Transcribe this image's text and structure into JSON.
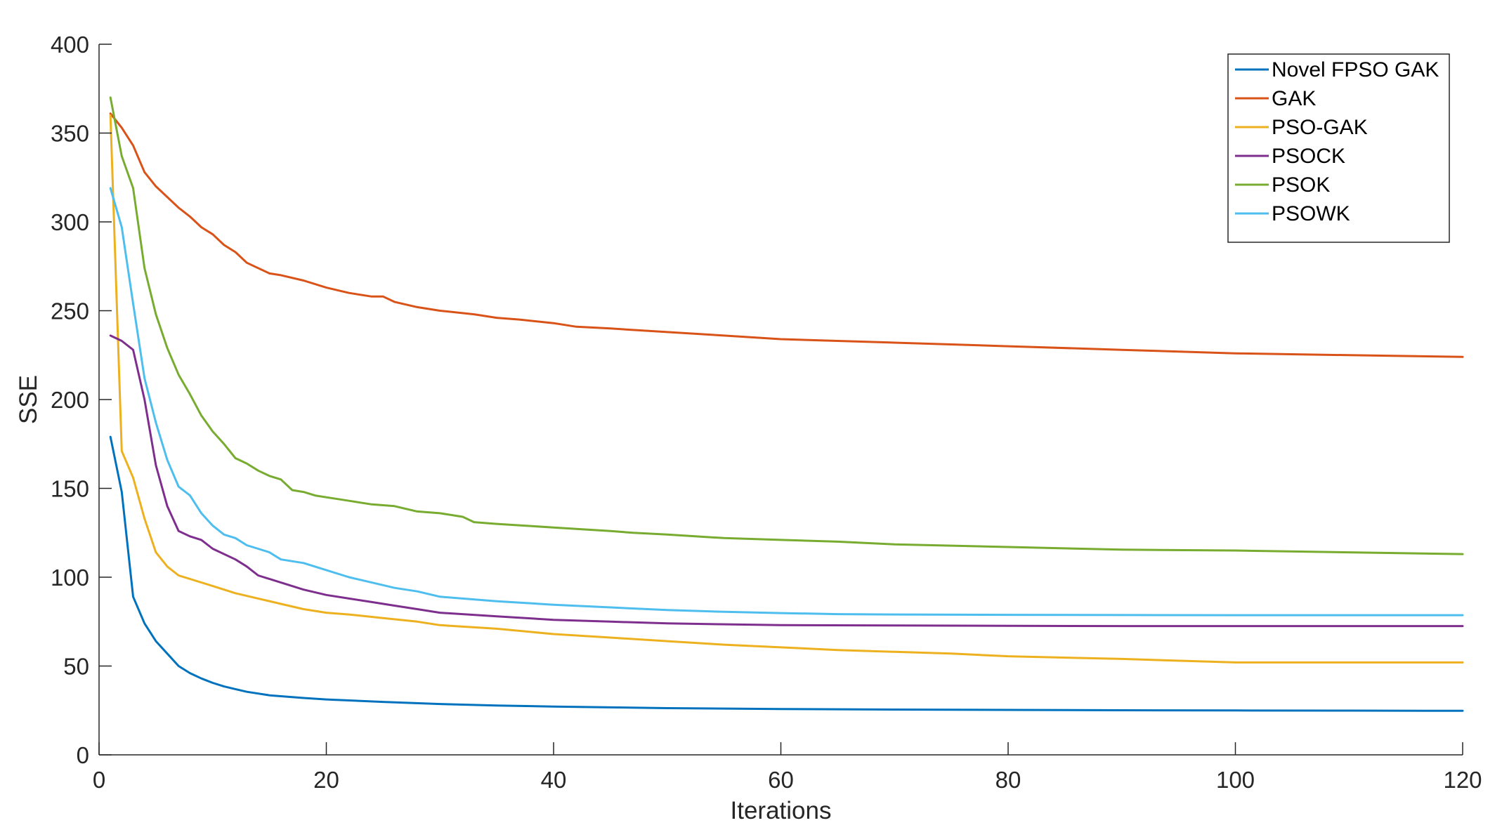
{
  "chart_data": {
    "type": "line",
    "title": "",
    "xlabel": "Iterations",
    "ylabel": "SSE",
    "xlim": [
      0,
      120
    ],
    "ylim": [
      0,
      400
    ],
    "xticks": [
      0,
      20,
      40,
      60,
      80,
      100,
      120
    ],
    "yticks": [
      0,
      50,
      100,
      150,
      200,
      250,
      300,
      350,
      400
    ],
    "grid": false,
    "legend_position": "top-right",
    "series": [
      {
        "name": "Novel FPSO GAK",
        "color": "#0072BD",
        "points": [
          [
            1,
            179
          ],
          [
            2,
            148
          ],
          [
            3,
            89
          ],
          [
            4,
            74
          ],
          [
            5,
            64
          ],
          [
            6,
            57
          ],
          [
            7,
            50
          ],
          [
            8,
            46
          ],
          [
            9,
            43
          ],
          [
            10,
            40.5
          ],
          [
            11,
            38.5
          ],
          [
            12,
            37
          ],
          [
            13,
            35.5
          ],
          [
            14,
            34.5
          ],
          [
            15,
            33.5
          ],
          [
            16,
            33
          ],
          [
            18,
            32
          ],
          [
            20,
            31.2
          ],
          [
            25,
            29.8
          ],
          [
            30,
            28.6
          ],
          [
            35,
            27.8
          ],
          [
            40,
            27.2
          ],
          [
            45,
            26.7
          ],
          [
            50,
            26.3
          ],
          [
            60,
            25.8
          ],
          [
            70,
            25.5
          ],
          [
            80,
            25.3
          ],
          [
            90,
            25.1
          ],
          [
            100,
            25
          ],
          [
            110,
            24.9
          ],
          [
            120,
            24.8
          ]
        ]
      },
      {
        "name": "GAK",
        "color": "#D95319",
        "points": [
          [
            1,
            361
          ],
          [
            2,
            353
          ],
          [
            3,
            343
          ],
          [
            4,
            328
          ],
          [
            5,
            320
          ],
          [
            6,
            314
          ],
          [
            7,
            308
          ],
          [
            8,
            303
          ],
          [
            9,
            297
          ],
          [
            10,
            293
          ],
          [
            11,
            287
          ],
          [
            12,
            283
          ],
          [
            13,
            277
          ],
          [
            14,
            274
          ],
          [
            15,
            271
          ],
          [
            16,
            270
          ],
          [
            18,
            267
          ],
          [
            20,
            263
          ],
          [
            22,
            260
          ],
          [
            24,
            258
          ],
          [
            25,
            258
          ],
          [
            26,
            255
          ],
          [
            28,
            252
          ],
          [
            30,
            250
          ],
          [
            33,
            248
          ],
          [
            35,
            246
          ],
          [
            37,
            245
          ],
          [
            40,
            243
          ],
          [
            42,
            241
          ],
          [
            45,
            240
          ],
          [
            50,
            238
          ],
          [
            55,
            236
          ],
          [
            60,
            234
          ],
          [
            65,
            233
          ],
          [
            70,
            232
          ],
          [
            80,
            230
          ],
          [
            90,
            228
          ],
          [
            100,
            226
          ],
          [
            110,
            225
          ],
          [
            120,
            224
          ]
        ]
      },
      {
        "name": "PSO-GAK",
        "color": "#EDB120",
        "points": [
          [
            1,
            360
          ],
          [
            2,
            171
          ],
          [
            3,
            156
          ],
          [
            4,
            133
          ],
          [
            5,
            114
          ],
          [
            6,
            106
          ],
          [
            7,
            101
          ],
          [
            8,
            99
          ],
          [
            10,
            95
          ],
          [
            12,
            91
          ],
          [
            14,
            88
          ],
          [
            16,
            85
          ],
          [
            18,
            82
          ],
          [
            20,
            80
          ],
          [
            22,
            79
          ],
          [
            25,
            77
          ],
          [
            28,
            75
          ],
          [
            30,
            73
          ],
          [
            35,
            71
          ],
          [
            40,
            68
          ],
          [
            45,
            66
          ],
          [
            50,
            64
          ],
          [
            55,
            62
          ],
          [
            60,
            60.5
          ],
          [
            65,
            59
          ],
          [
            70,
            58
          ],
          [
            75,
            57
          ],
          [
            80,
            55.5
          ],
          [
            90,
            54
          ],
          [
            100,
            52
          ],
          [
            110,
            52
          ],
          [
            120,
            52
          ]
        ]
      },
      {
        "name": "PSOCK",
        "color": "#7E2F8E",
        "points": [
          [
            1,
            236
          ],
          [
            2,
            233
          ],
          [
            3,
            228
          ],
          [
            4,
            200
          ],
          [
            5,
            163
          ],
          [
            6,
            140
          ],
          [
            7,
            126
          ],
          [
            8,
            123
          ],
          [
            9,
            121
          ],
          [
            10,
            116
          ],
          [
            12,
            110
          ],
          [
            13,
            106
          ],
          [
            14,
            101
          ],
          [
            16,
            97
          ],
          [
            18,
            93
          ],
          [
            20,
            90
          ],
          [
            22,
            88
          ],
          [
            24,
            86
          ],
          [
            26,
            84
          ],
          [
            28,
            82
          ],
          [
            30,
            80
          ],
          [
            35,
            78
          ],
          [
            40,
            76
          ],
          [
            45,
            75
          ],
          [
            50,
            74
          ],
          [
            60,
            73
          ],
          [
            70,
            72.8
          ],
          [
            80,
            72.6
          ],
          [
            90,
            72.5
          ],
          [
            100,
            72.5
          ],
          [
            110,
            72.5
          ],
          [
            120,
            72.5
          ]
        ]
      },
      {
        "name": "PSOK",
        "color": "#77AC30",
        "points": [
          [
            1,
            370
          ],
          [
            2,
            337
          ],
          [
            3,
            319
          ],
          [
            4,
            274
          ],
          [
            5,
            248
          ],
          [
            6,
            229
          ],
          [
            7,
            214
          ],
          [
            8,
            203
          ],
          [
            9,
            191
          ],
          [
            10,
            182
          ],
          [
            11,
            175
          ],
          [
            12,
            167
          ],
          [
            13,
            164
          ],
          [
            14,
            160
          ],
          [
            15,
            157
          ],
          [
            16,
            155
          ],
          [
            17,
            149
          ],
          [
            18,
            148
          ],
          [
            19,
            146
          ],
          [
            20,
            145
          ],
          [
            22,
            143
          ],
          [
            24,
            141
          ],
          [
            26,
            140
          ],
          [
            28,
            137
          ],
          [
            30,
            136
          ],
          [
            32,
            134
          ],
          [
            33,
            131
          ],
          [
            35,
            130
          ],
          [
            40,
            128
          ],
          [
            45,
            126
          ],
          [
            47,
            125
          ],
          [
            50,
            124
          ],
          [
            55,
            122
          ],
          [
            60,
            121
          ],
          [
            65,
            120
          ],
          [
            70,
            118.5
          ],
          [
            80,
            117
          ],
          [
            90,
            115.5
          ],
          [
            100,
            115
          ],
          [
            110,
            114
          ],
          [
            120,
            113
          ]
        ]
      },
      {
        "name": "PSOWK",
        "color": "#4DBEEE",
        "points": [
          [
            1,
            319
          ],
          [
            2,
            297
          ],
          [
            3,
            254
          ],
          [
            4,
            212
          ],
          [
            5,
            187
          ],
          [
            6,
            166
          ],
          [
            7,
            151
          ],
          [
            8,
            146
          ],
          [
            9,
            136
          ],
          [
            10,
            129
          ],
          [
            11,
            124
          ],
          [
            12,
            122
          ],
          [
            13,
            118
          ],
          [
            14,
            116
          ],
          [
            15,
            114
          ],
          [
            16,
            110
          ],
          [
            18,
            108
          ],
          [
            20,
            104
          ],
          [
            22,
            100
          ],
          [
            24,
            97
          ],
          [
            26,
            94
          ],
          [
            28,
            92
          ],
          [
            30,
            89
          ],
          [
            35,
            86.5
          ],
          [
            40,
            84.5
          ],
          [
            45,
            83
          ],
          [
            50,
            81.5
          ],
          [
            55,
            80.5
          ],
          [
            60,
            79.8
          ],
          [
            65,
            79.2
          ],
          [
            70,
            79
          ],
          [
            80,
            78.8
          ],
          [
            90,
            78.7
          ],
          [
            100,
            78.6
          ],
          [
            110,
            78.6
          ],
          [
            120,
            78.6
          ]
        ]
      }
    ]
  }
}
